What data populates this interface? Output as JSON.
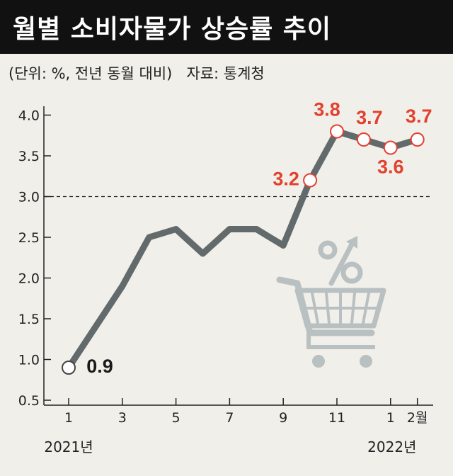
{
  "header": {
    "title": "월별 소비자물가 상승률 추이",
    "unit_note": "(단위: %, 전년 동월 대비)",
    "source_note": "자료: 통계청"
  },
  "chart_data": {
    "type": "line",
    "x": [
      "2021-01",
      "2021-02",
      "2021-03",
      "2021-04",
      "2021-05",
      "2021-06",
      "2021-07",
      "2021-08",
      "2021-09",
      "2021-10",
      "2021-11",
      "2021-12",
      "2022-01",
      "2022-02"
    ],
    "values": [
      0.9,
      1.4,
      1.9,
      2.5,
      2.6,
      2.3,
      2.6,
      2.6,
      2.4,
      3.2,
      3.8,
      3.7,
      3.6,
      3.7
    ],
    "y_ticks": [
      "0.5",
      "1.0",
      "1.5",
      "2.0",
      "2.5",
      "3.0",
      "3.5",
      "4.0"
    ],
    "ylim": [
      0.5,
      4.0
    ],
    "x_tick_labels": [
      {
        "index": 0,
        "label": "1"
      },
      {
        "index": 2,
        "label": "3"
      },
      {
        "index": 4,
        "label": "5"
      },
      {
        "index": 6,
        "label": "7"
      },
      {
        "index": 8,
        "label": "9"
      },
      {
        "index": 10,
        "label": "11"
      },
      {
        "index": 12,
        "label": "1"
      },
      {
        "index": 13,
        "label": "2월"
      }
    ],
    "year_labels": [
      {
        "index": 0,
        "label": "2021년"
      },
      {
        "index": 12,
        "label": "2022년"
      }
    ],
    "reference_line": 3.0,
    "data_labels": [
      {
        "index": 0,
        "label": "0.9",
        "color": "#1a1a1a"
      },
      {
        "index": 9,
        "label": "3.2",
        "color": "#e2412f"
      },
      {
        "index": 10,
        "label": "3.8",
        "color": "#e2412f"
      },
      {
        "index": 11,
        "label": "3.7",
        "color": "#e2412f"
      },
      {
        "index": 12,
        "label": "3.6",
        "color": "#e2412f"
      },
      {
        "index": 13,
        "label": "3.7",
        "color": "#e2412f"
      }
    ],
    "marker_indices": [
      0,
      9,
      10,
      11,
      12,
      13
    ],
    "colors": {
      "line": "#626a6c",
      "marker_stroke_red": "#e2412f",
      "marker_stroke_dark": "#444444",
      "label_red": "#e2412f",
      "illustration": "#b9c0c2"
    },
    "illustration_icon": "shopping-cart-percent-icon"
  }
}
